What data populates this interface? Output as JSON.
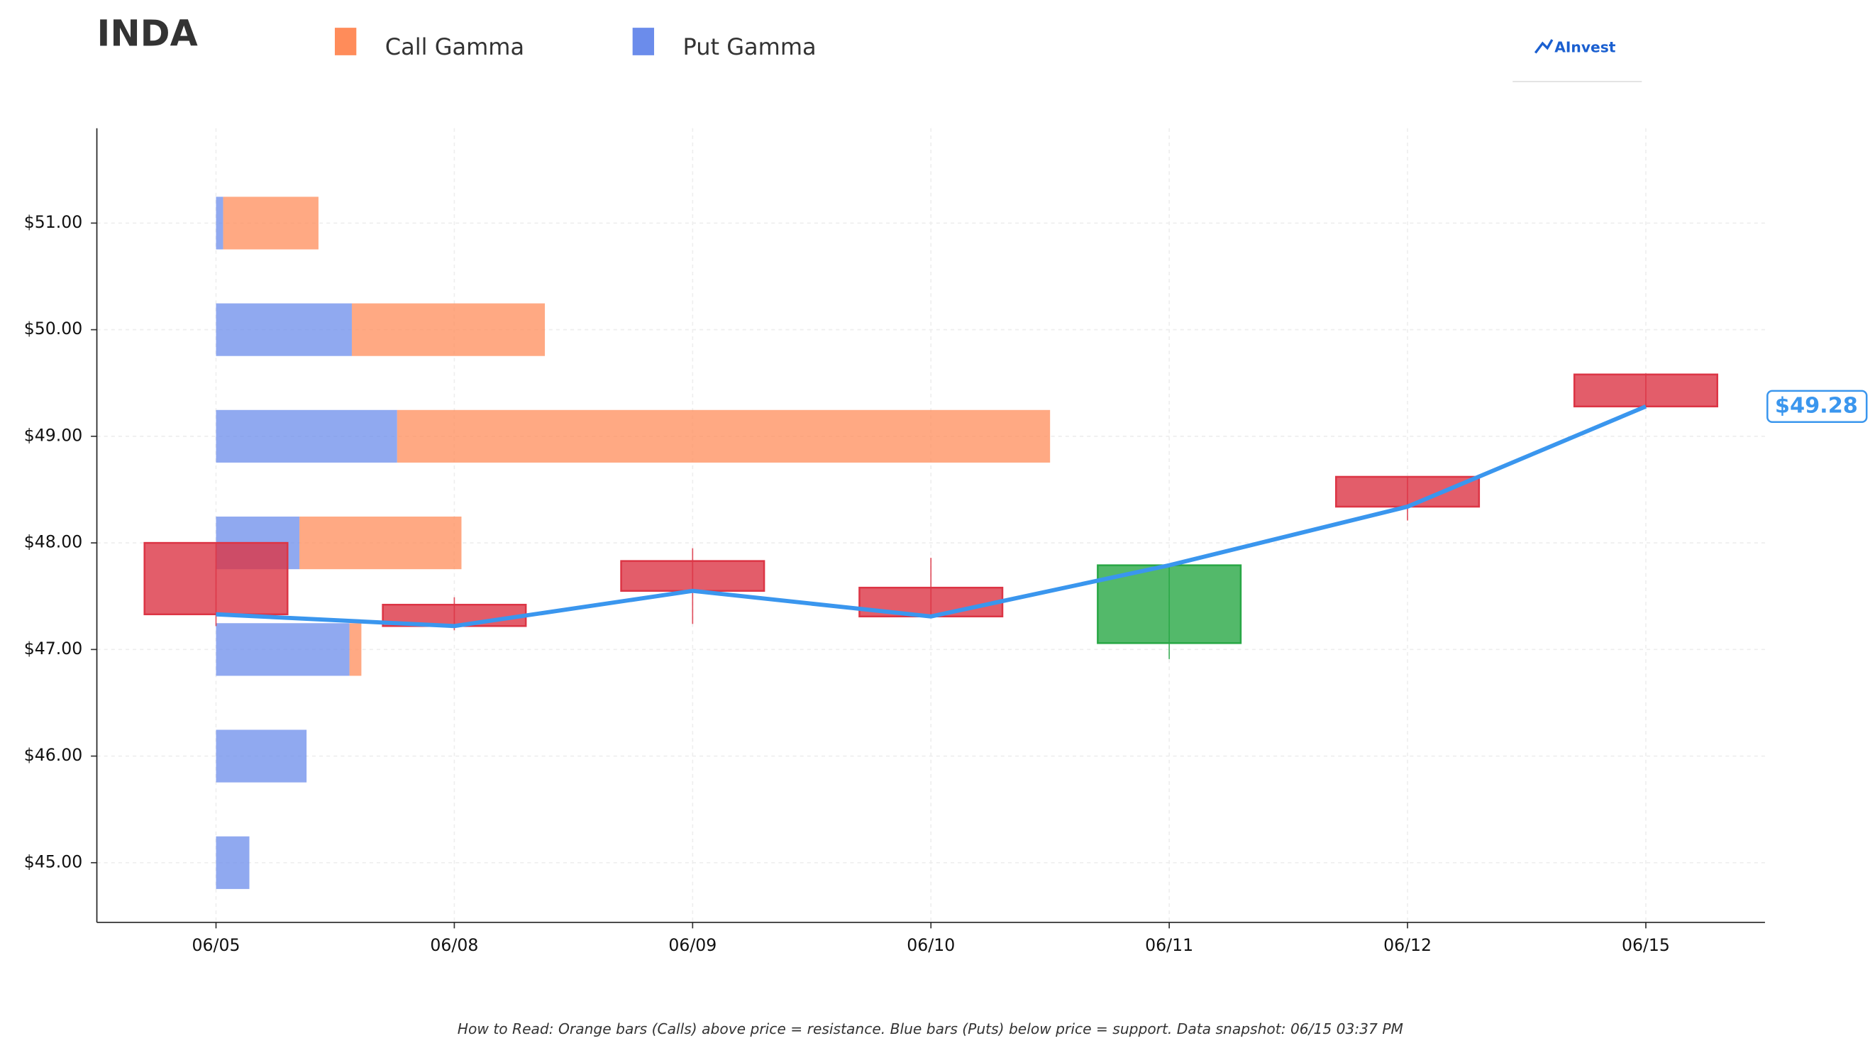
{
  "chart_data": {
    "type": "candlestick",
    "title": "INDA",
    "categories": [
      "06/05",
      "06/08",
      "06/09",
      "06/10",
      "06/11",
      "06/12",
      "06/15"
    ],
    "open": [
      48.0,
      47.42,
      47.83,
      47.58,
      47.06,
      48.62,
      49.58
    ],
    "high": [
      48.0,
      47.49,
      47.95,
      47.86,
      47.79,
      48.62,
      49.59
    ],
    "low": [
      47.22,
      47.18,
      47.24,
      47.31,
      46.91,
      48.21,
      49.28
    ],
    "close": [
      47.33,
      47.22,
      47.55,
      47.31,
      47.79,
      48.34,
      49.28
    ],
    "up_color": "#28a745",
    "down_color": "#dc3545",
    "line_color": "#3a96ee",
    "xlim": [
      -0.5,
      6.5
    ],
    "ylim": [
      44.44,
      51.89
    ],
    "yticks": [
      {
        "value": 45,
        "label": "$45.00"
      },
      {
        "value": 46,
        "label": "$46.00"
      },
      {
        "value": 47,
        "label": "$47.00"
      },
      {
        "value": 48,
        "label": "$48.00"
      },
      {
        "value": 49,
        "label": "$49.00"
      },
      {
        "value": 50,
        "label": "$50.00"
      },
      {
        "value": 51,
        "label": "$51.00"
      }
    ],
    "grid": true,
    "gamma": {
      "strikes": [
        51,
        50,
        49,
        48,
        47,
        46,
        45
      ],
      "series": [
        {
          "name": "Put Gamma",
          "color": "#6b8ceb",
          "values": [
            0.03,
            0.57,
            0.76,
            0.35,
            0.56,
            0.38,
            0.14
          ]
        },
        {
          "name": "Call Gamma",
          "color": "#ff8c5a",
          "values": [
            0.4,
            0.81,
            2.74,
            0.68,
            0.05,
            0,
            0
          ]
        }
      ]
    },
    "annotation": {
      "text": "$49.28",
      "value": 49.28
    },
    "logo": "AInvest",
    "footnote": "How to Read: Orange bars (Calls) above price = resistance. Blue bars (Puts) below price = support. Data snapshot: 06/15 03:37 PM"
  }
}
